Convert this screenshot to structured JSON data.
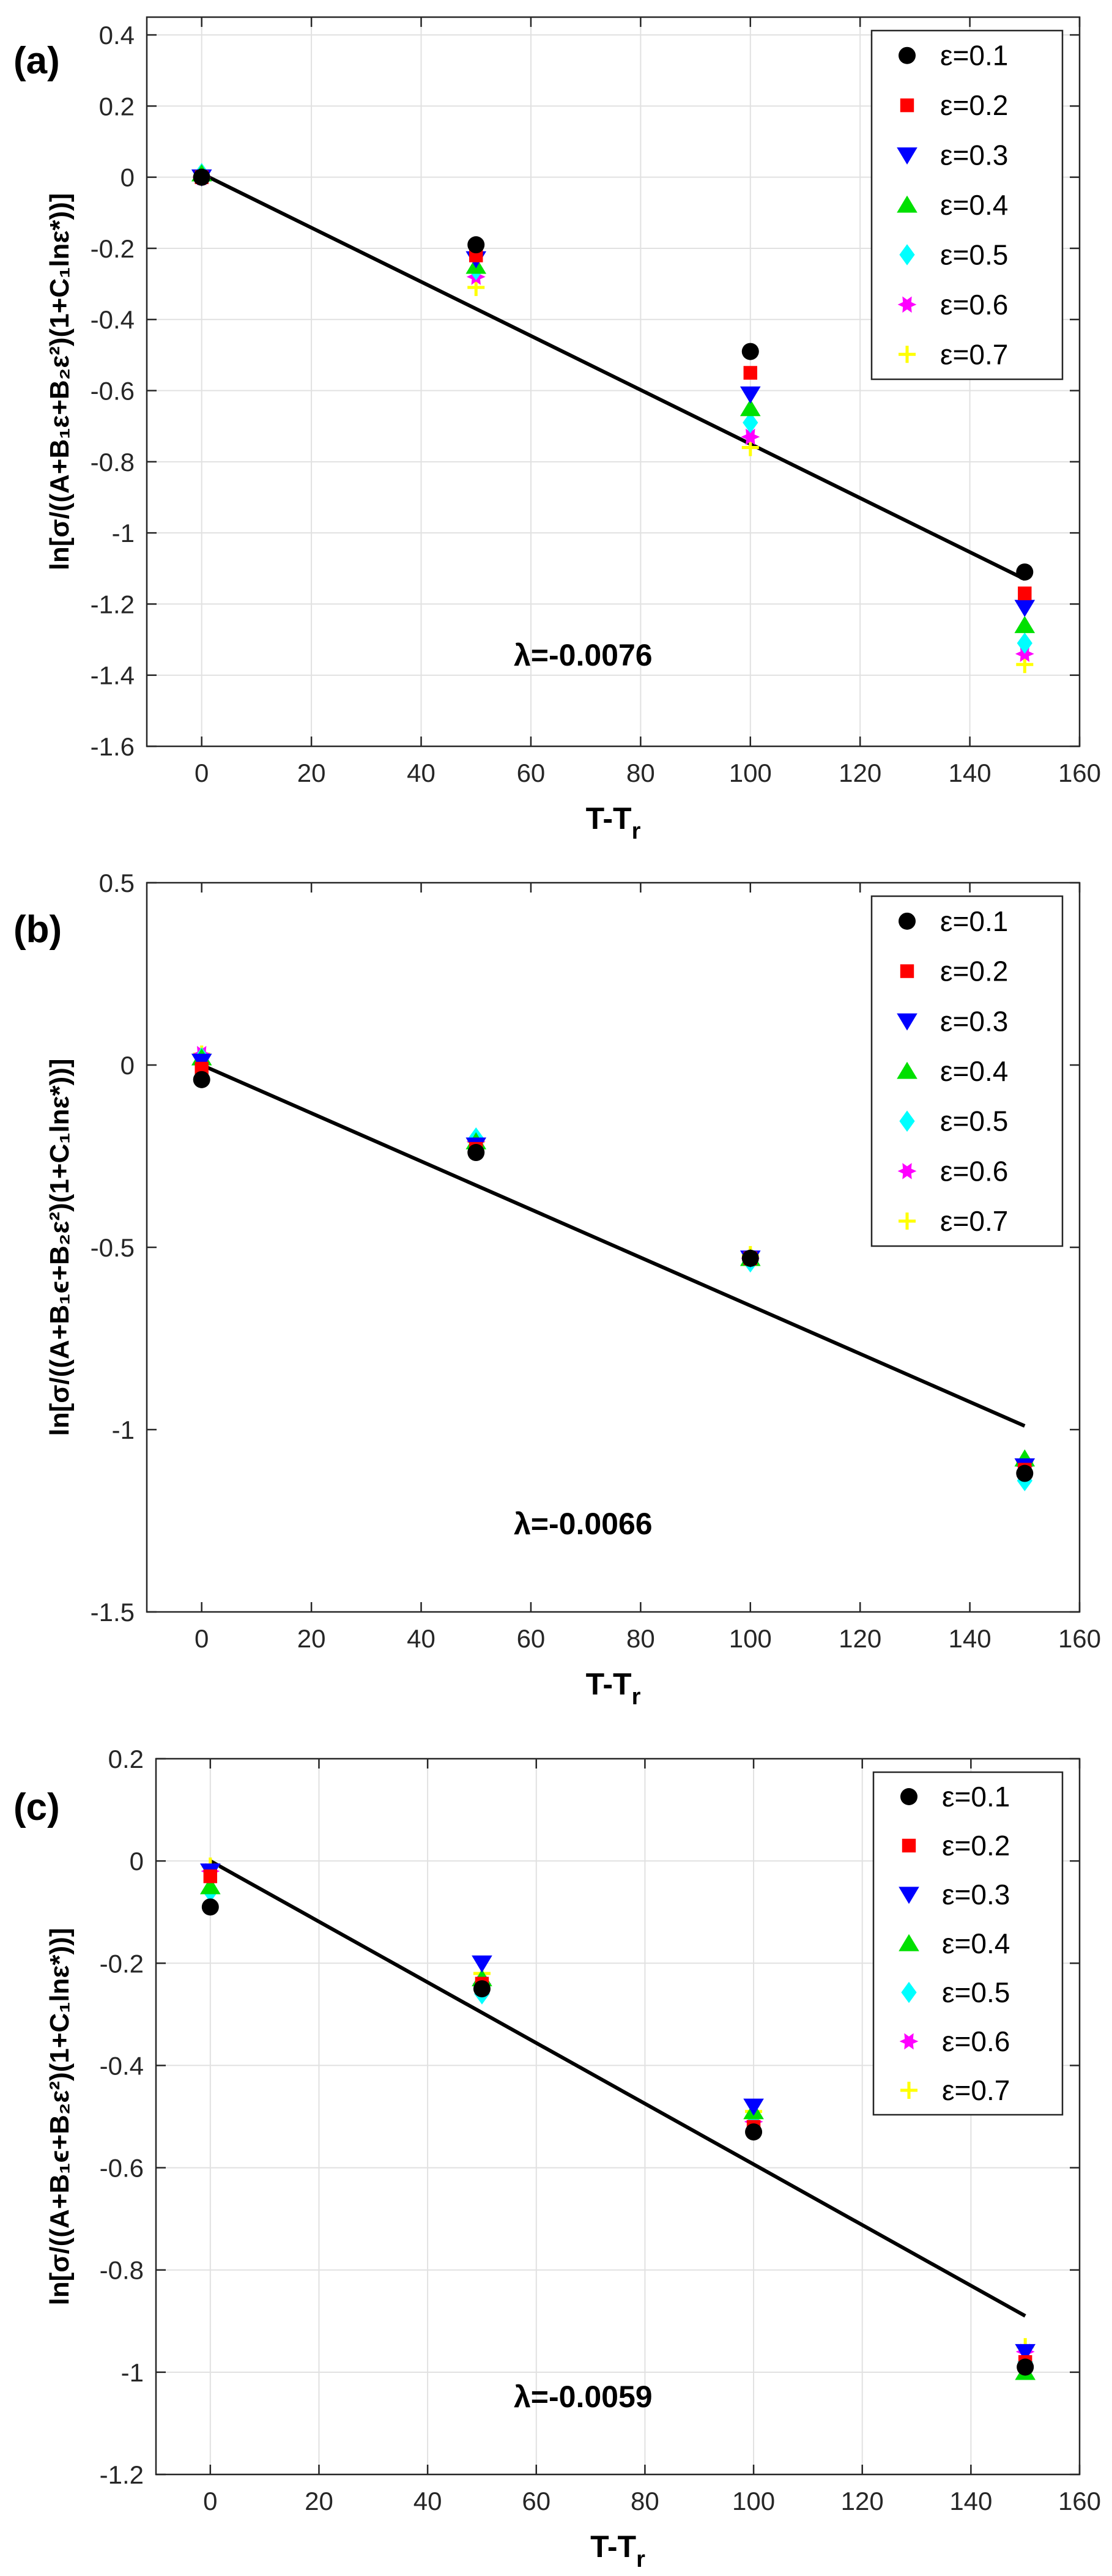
{
  "chart_data": [
    {
      "type": "scatter",
      "panel_label": "(a)",
      "xlabel": "T-T",
      "xlabel_sub": "r",
      "ylabel": "ln[σ/((A+B₁ε+B₂ε²)(1+C₁lnε*))]",
      "xlim": [
        -10,
        160
      ],
      "ylim": [
        -1.6,
        0.45
      ],
      "xticks": [
        "0",
        "20",
        "40",
        "60",
        "80",
        "100",
        "120",
        "140",
        "160"
      ],
      "yticks": [
        "0.4",
        "0.2",
        "0",
        "-0.2",
        "-0.4",
        "-0.6",
        "-0.8",
        "-1",
        "-1.2",
        "-1.4",
        "-1.6"
      ],
      "grid": true,
      "legend_position": "top-right",
      "annotation": "λ=-0.0076",
      "x": [
        0,
        50,
        100,
        150
      ],
      "series": [
        {
          "name": "ε=0.1",
          "color": "#000000",
          "marker": "circle",
          "values": [
            0.0,
            -0.19,
            -0.49,
            -1.11
          ]
        },
        {
          "name": "ε=0.2",
          "color": "#ff0000",
          "marker": "square",
          "values": [
            0.0,
            -0.22,
            -0.55,
            -1.17
          ]
        },
        {
          "name": "ε=0.3",
          "color": "#0000ff",
          "marker": "triangle-down",
          "values": [
            0.0,
            -0.23,
            -0.61,
            -1.21
          ]
        },
        {
          "name": "ε=0.4",
          "color": "#00e000",
          "marker": "triangle-up",
          "values": [
            0.01,
            -0.25,
            -0.65,
            -1.26
          ]
        },
        {
          "name": "ε=0.5",
          "color": "#00ffff",
          "marker": "diamond",
          "values": [
            0.01,
            -0.26,
            -0.69,
            -1.31
          ]
        },
        {
          "name": "ε=0.6",
          "color": "#ff00ff",
          "marker": "hexagram",
          "values": [
            0.0,
            -0.28,
            -0.73,
            -1.34
          ]
        },
        {
          "name": "ε=0.7",
          "color": "#ffff00",
          "marker": "plus",
          "values": [
            0.0,
            -0.31,
            -0.76,
            -1.37
          ]
        }
      ],
      "fit_line": {
        "x": [
          0,
          150
        ],
        "y": [
          0.01,
          -1.13
        ]
      }
    },
    {
      "type": "scatter",
      "panel_label": "(b)",
      "xlabel": "T-T",
      "xlabel_sub": "r",
      "ylabel": "ln[σ/((A+B₁ϵ+B₂ε²)(1+C₁lnε*))]",
      "xlim": [
        -10,
        160
      ],
      "ylim": [
        -1.5,
        0.5
      ],
      "xticks": [
        "0",
        "20",
        "40",
        "60",
        "80",
        "100",
        "120",
        "140",
        "160"
      ],
      "yticks": [
        "0.5",
        "0",
        "-0.5",
        "-1",
        "-1.5"
      ],
      "grid": false,
      "legend_position": "top-right",
      "annotation": "λ=-0.0066",
      "x": [
        0,
        50,
        100,
        150
      ],
      "series": [
        {
          "name": "ε=0.1",
          "color": "#000000",
          "marker": "circle",
          "values": [
            -0.04,
            -0.24,
            -0.53,
            -1.12
          ]
        },
        {
          "name": "ε=0.2",
          "color": "#ff0000",
          "marker": "square",
          "values": [
            -0.01,
            -0.23,
            -0.53,
            -1.11
          ]
        },
        {
          "name": "ε=0.3",
          "color": "#0000ff",
          "marker": "triangle-down",
          "values": [
            0.01,
            -0.22,
            -0.53,
            -1.1
          ]
        },
        {
          "name": "ε=0.4",
          "color": "#00e000",
          "marker": "triangle-up",
          "values": [
            0.02,
            -0.21,
            -0.53,
            -1.08
          ]
        },
        {
          "name": "ε=0.5",
          "color": "#00ffff",
          "marker": "diamond",
          "values": [
            0.02,
            -0.2,
            -0.54,
            -1.14
          ]
        },
        {
          "name": "ε=0.6",
          "color": "#ff00ff",
          "marker": "hexagram",
          "values": [
            0.03,
            -0.21,
            -0.53,
            -1.1
          ]
        },
        {
          "name": "ε=0.7",
          "color": "#ffff00",
          "marker": "plus",
          "values": [
            0.03,
            -0.21,
            -0.52,
            -1.09
          ]
        }
      ],
      "fit_line": {
        "x": [
          0,
          150
        ],
        "y": [
          0.0,
          -0.99
        ]
      }
    },
    {
      "type": "scatter",
      "panel_label": "(c)",
      "xlabel": "T-T",
      "xlabel_sub": "r",
      "ylabel": "ln[σ/((A+B₁ϵ+B₂ε²)(1+C₁lnε*))]",
      "xlim": [
        -10,
        160
      ],
      "ylim": [
        -1.2,
        0.2
      ],
      "xticks": [
        "0",
        "20",
        "40",
        "60",
        "80",
        "100",
        "120",
        "140",
        "160"
      ],
      "yticks": [
        "0.2",
        "0",
        "-0.2",
        "-0.4",
        "-0.6",
        "-0.8",
        "-1",
        "-1.2"
      ],
      "grid": true,
      "legend_position": "top-right",
      "annotation": "λ=-0.0059",
      "x": [
        0,
        50,
        100,
        150
      ],
      "series": [
        {
          "name": "ε=0.1",
          "color": "#000000",
          "marker": "circle",
          "values": [
            -0.09,
            -0.25,
            -0.53,
            -0.99
          ]
        },
        {
          "name": "ε=0.2",
          "color": "#ff0000",
          "marker": "square",
          "values": [
            -0.03,
            -0.24,
            -0.52,
            -0.98
          ]
        },
        {
          "name": "ε=0.3",
          "color": "#0000ff",
          "marker": "triangle-down",
          "values": [
            -0.02,
            -0.2,
            -0.48,
            -0.96
          ]
        },
        {
          "name": "ε=0.4",
          "color": "#00e000",
          "marker": "triangle-up",
          "values": [
            -0.05,
            -0.23,
            -0.49,
            -1.0
          ]
        },
        {
          "name": "ε=0.5",
          "color": "#00ffff",
          "marker": "diamond",
          "values": [
            -0.06,
            -0.26,
            -0.5,
            -0.98
          ]
        },
        {
          "name": "ε=0.6",
          "color": "#ff00ff",
          "marker": "hexagram",
          "values": [
            -0.02,
            -0.24,
            -0.51,
            -0.96
          ]
        },
        {
          "name": "ε=0.7",
          "color": "#ffff00",
          "marker": "plus",
          "values": [
            -0.01,
            -0.22,
            -0.49,
            -0.95
          ]
        }
      ],
      "fit_line": {
        "x": [
          0,
          150
        ],
        "y": [
          0.0,
          -0.89
        ]
      }
    }
  ]
}
